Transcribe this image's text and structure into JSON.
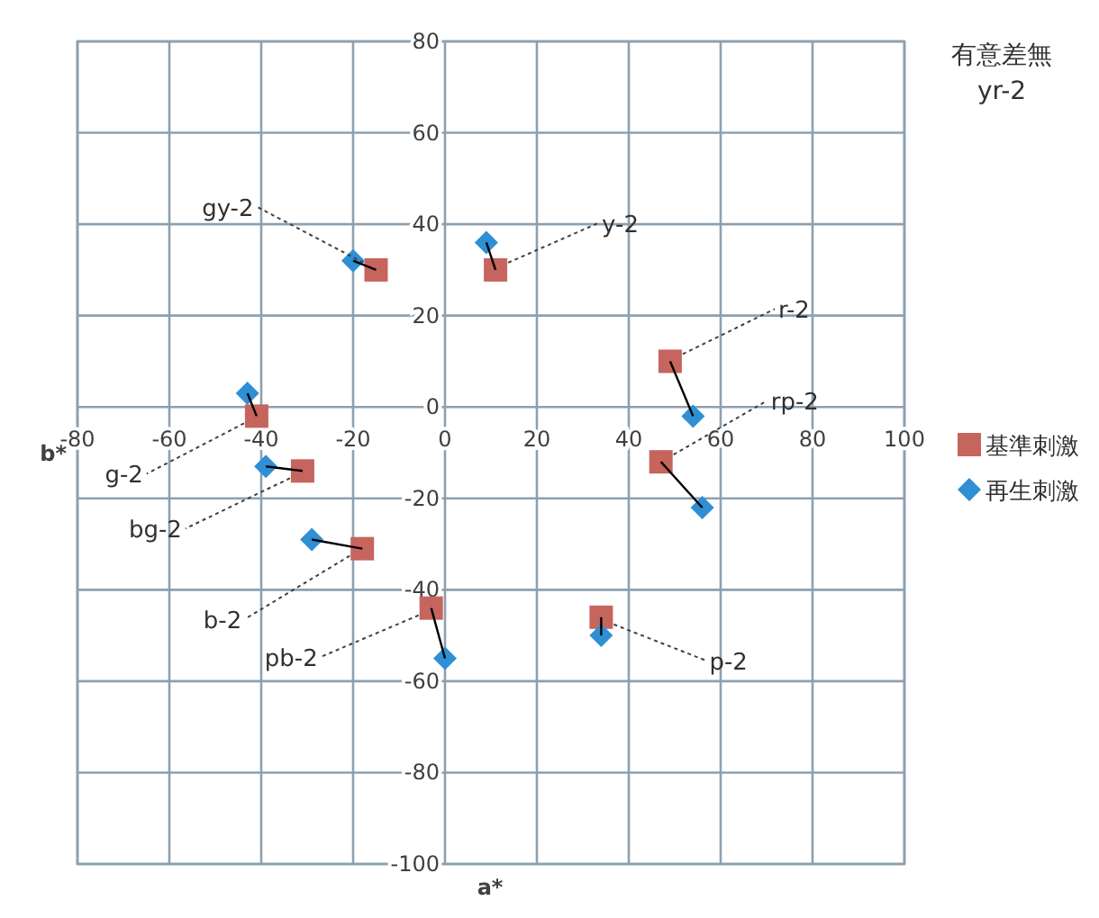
{
  "chart_data": {
    "type": "scatter",
    "title": "有意差無",
    "subtitle": "yr-2",
    "xlabel": "a*",
    "ylabel": "b*",
    "xlim": [
      -80,
      100
    ],
    "xticks": [
      -80,
      -60,
      -40,
      -20,
      0,
      20,
      40,
      60,
      80,
      100
    ],
    "ylim": [
      -100,
      80
    ],
    "yticks": [
      -100,
      -80,
      -60,
      -40,
      -20,
      0,
      20,
      40,
      60,
      80
    ],
    "grid": true,
    "legend": "right",
    "series": [
      {
        "type": "line",
        "color": "#000000",
        "marker": "none",
        "line_style": "solid",
        "x": [
          -15,
          -20
        ],
        "values": [
          30,
          32
        ]
      },
      {
        "type": "line",
        "color": "#000000",
        "marker": "none",
        "line_style": "solid",
        "x": [
          11,
          9
        ],
        "values": [
          30,
          36
        ]
      },
      {
        "type": "line",
        "color": "#000000",
        "marker": "none",
        "line_style": "solid",
        "x": [
          49,
          54
        ],
        "values": [
          10,
          -2
        ]
      },
      {
        "type": "line",
        "color": "#000000",
        "marker": "none",
        "line_style": "solid",
        "x": [
          47,
          56
        ],
        "values": [
          -12,
          -22
        ]
      },
      {
        "type": "line",
        "color": "#000000",
        "marker": "none",
        "line_style": "solid",
        "x": [
          -41,
          -43
        ],
        "values": [
          -2,
          3
        ]
      },
      {
        "type": "line",
        "color": "#000000",
        "marker": "none",
        "line_style": "solid",
        "x": [
          -31,
          -39
        ],
        "values": [
          -14,
          -13
        ]
      },
      {
        "type": "line",
        "color": "#000000",
        "marker": "none",
        "line_style": "solid",
        "x": [
          -18,
          -29
        ],
        "values": [
          -31,
          -29
        ]
      },
      {
        "type": "line",
        "color": "#000000",
        "marker": "none",
        "line_style": "solid",
        "x": [
          -3,
          0
        ],
        "values": [
          -44,
          -55
        ]
      },
      {
        "type": "line",
        "color": "#000000",
        "marker": "none",
        "line_style": "solid",
        "x": [
          34,
          34
        ],
        "values": [
          -46,
          -50
        ]
      },
      {
        "name": "基準刺激",
        "color": "#c5655d",
        "marker": "square",
        "x": [
          -15,
          11,
          49,
          47,
          -41,
          -31,
          -18,
          -3,
          34
        ],
        "values": [
          30,
          30,
          10,
          -12,
          -2,
          -14,
          -31,
          -44,
          -46
        ]
      },
      {
        "name": "再生刺激",
        "color": "#2e8fd4",
        "marker": "diamond",
        "x": [
          -20,
          9,
          54,
          56,
          -43,
          -39,
          -29,
          0,
          34
        ],
        "values": [
          32,
          36,
          -2,
          -22,
          3,
          -13,
          -29,
          -55,
          -50
        ]
      }
    ],
    "annotations": [
      {
        "text": "gy-2",
        "x": -15,
        "y": 30
      },
      {
        "text": "y-2",
        "x": 11,
        "y": 30
      },
      {
        "text": "r-2",
        "x": 49,
        "y": 10
      },
      {
        "text": "rp-2",
        "x": 47,
        "y": -12
      },
      {
        "text": "g-2",
        "x": -41,
        "y": -2
      },
      {
        "text": "bg-2",
        "x": -31,
        "y": -14
      },
      {
        "text": "b-2",
        "x": -18,
        "y": -31
      },
      {
        "text": "pb-2",
        "x": -3,
        "y": -44
      },
      {
        "text": "p-2",
        "x": 34,
        "y": -46
      }
    ]
  }
}
